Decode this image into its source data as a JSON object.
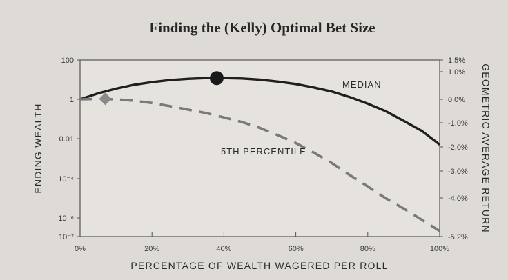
{
  "chart_data": {
    "type": "line",
    "title": "Finding the (Kelly) Optimal Bet Size",
    "xlabel": "PERCENTAGE OF WEALTH WAGERED PER ROLL",
    "ylabel_left": "ENDING WEALTH",
    "ylabel_right": "GEOMETRIC AVERAGE RETURN",
    "x_ticks": [
      "0%",
      "20%",
      "40%",
      "60%",
      "80%",
      "100%"
    ],
    "x_tick_values": [
      0,
      20,
      40,
      60,
      80,
      100
    ],
    "xlim": [
      0,
      100
    ],
    "y_left_scale": "log",
    "y_left_ticks": [
      {
        "label": "100",
        "value": 100
      },
      {
        "label": "1",
        "value": 1
      },
      {
        "label": "0.01",
        "value": 0.01
      },
      {
        "label": "10⁻⁴",
        "value": 0.0001
      },
      {
        "label": "10⁻⁶",
        "value": 1e-06
      },
      {
        "label": "10⁻⁷",
        "value": 1e-07
      }
    ],
    "y_right_ticks": [
      {
        "label": "1.5%",
        "value": 1.5
      },
      {
        "label": "1.0%",
        "value": 1.0
      },
      {
        "label": "0.0%",
        "value": 0.0
      },
      {
        "label": "-1.0%",
        "value": -1.0
      },
      {
        "label": "-2.0%",
        "value": -2.0
      },
      {
        "label": "-3.0%",
        "value": -3.0
      },
      {
        "label": "-4.0%",
        "value": -4.0
      },
      {
        "label": "-5.2%",
        "value": -5.2
      }
    ],
    "series": [
      {
        "name": "MEDIAN",
        "style": "solid",
        "color": "#1f1f1f",
        "x": [
          0,
          5,
          10,
          15,
          20,
          25,
          30,
          35,
          40,
          45,
          50,
          55,
          60,
          65,
          70,
          75,
          80,
          85,
          90,
          95,
          100
        ],
        "y": [
          1,
          2,
          3.5,
          5.5,
          7.5,
          9.5,
          11,
          12,
          12,
          11.5,
          10,
          8,
          6,
          4,
          2.5,
          1.3,
          0.6,
          0.25,
          0.08,
          0.025,
          0.005
        ],
        "marker": {
          "x": 38,
          "y": 12,
          "shape": "circle",
          "color": "#1a1a1a"
        }
      },
      {
        "name": "5TH PERCENTILE",
        "style": "dashed",
        "color": "#7a7a7a",
        "x": [
          0,
          5,
          10,
          15,
          20,
          25,
          30,
          35,
          40,
          45,
          50,
          55,
          60,
          65,
          70,
          75,
          80,
          85,
          90,
          95,
          100
        ],
        "y": [
          1,
          1.05,
          1,
          0.85,
          0.65,
          0.45,
          0.3,
          0.2,
          0.12,
          0.07,
          0.035,
          0.015,
          0.006,
          0.002,
          0.0006,
          0.00015,
          4e-05,
          1e-05,
          3e-06,
          8e-07,
          2e-07
        ],
        "marker": {
          "x": 7,
          "y": 1.05,
          "shape": "diamond",
          "color": "#8a8a8a"
        }
      }
    ],
    "grid": false
  }
}
